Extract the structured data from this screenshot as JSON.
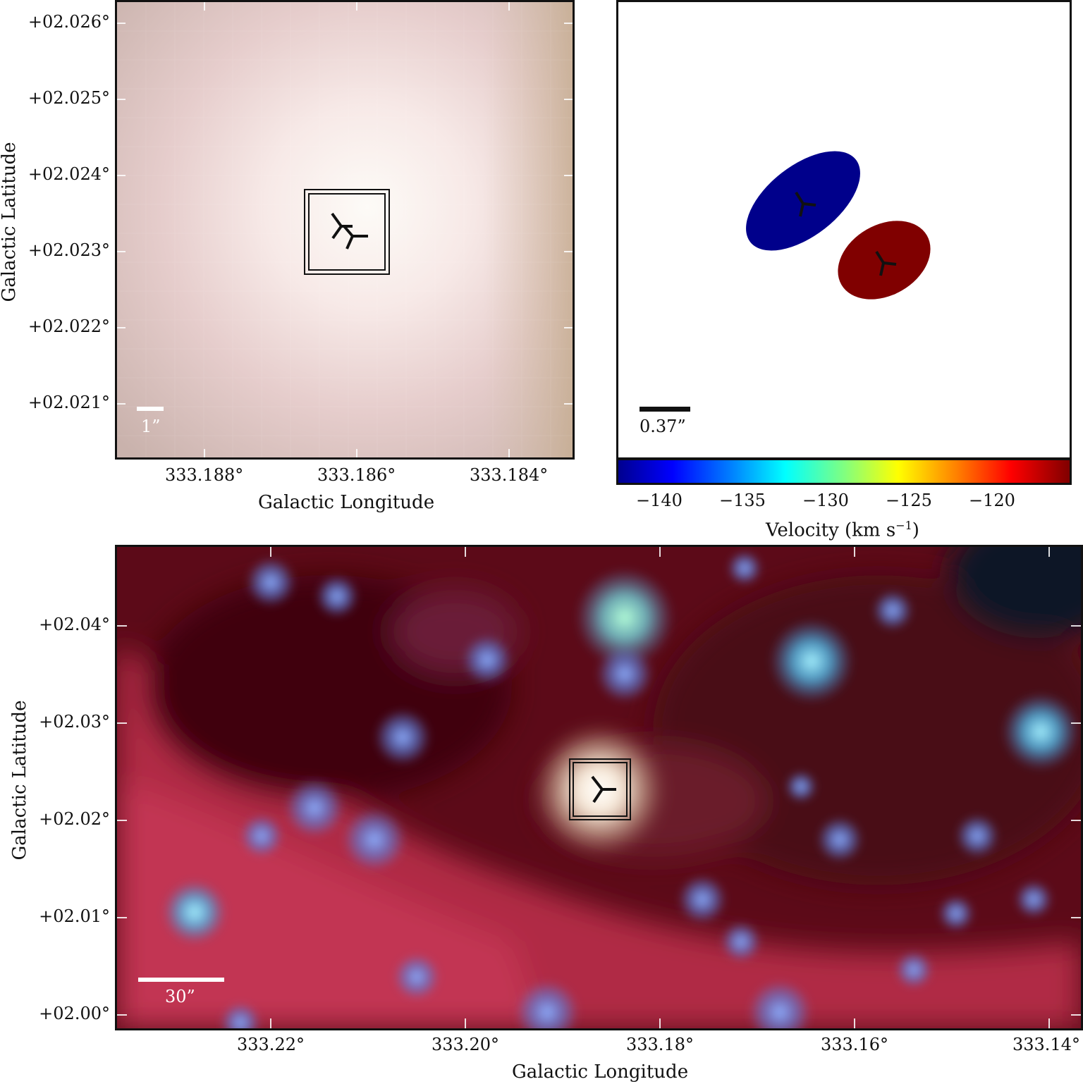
{
  "top_left": {
    "y_ticks": [
      "+02.026°",
      "+02.025°",
      "+02.024°",
      "+02.023°",
      "+02.022°",
      "+02.021°"
    ],
    "x_ticks": [
      "333.188°",
      "333.186°",
      "333.184°"
    ],
    "x_label": "Galactic Longitude",
    "y_label": "Galactic Latitude",
    "scalebar_label": "1”"
  },
  "top_right": {
    "scalebar_label": "0.37”",
    "colorbar_ticks": [
      "−140",
      "−135",
      "−130",
      "−125",
      "−120"
    ],
    "colorbar_label": "Velocity (km s",
    "colorbar_label_sup": "−1",
    "colorbar_label_end": ")",
    "colors": {
      "blueshifted": "#00008b",
      "redshifted": "#800000"
    }
  },
  "bottom": {
    "y_ticks": [
      "+02.04°",
      "+02.03°",
      "+02.02°",
      "+02.01°",
      "+02.00°"
    ],
    "x_ticks": [
      "333.22°",
      "333.20°",
      "333.18°",
      "333.16°",
      "333.14°"
    ],
    "x_label": "Galactic Longitude",
    "y_label": "Galactic Latitude",
    "scalebar_label": "30”"
  }
}
